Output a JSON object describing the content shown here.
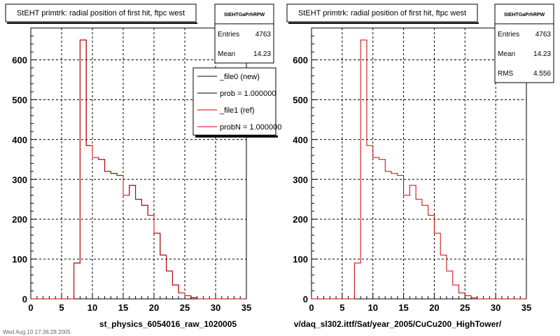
{
  "footer_text": "Wed Aug 10 17:36:28 2005",
  "chart_data": [
    {
      "type": "histogram",
      "title": "StEHT primtrk: radial position of first hit, ftpc west",
      "xlabel": "st_physics_6054016_raw_1020005",
      "xlim": [
        0,
        35
      ],
      "ylim": [
        0,
        680
      ],
      "bin_width": 1,
      "x_ticks": [
        0,
        5,
        10,
        15,
        20,
        25,
        30,
        35
      ],
      "y_ticks": [
        0,
        100,
        200,
        300,
        400,
        500,
        600
      ],
      "grid": true,
      "stats": {
        "header": "StEHTGaPrhRPW",
        "entries_label": "Entries",
        "entries": "4763",
        "mean_label": "Mean",
        "mean": "14.23"
      },
      "legend": {
        "placement": "top-right",
        "entries": [
          {
            "label": "_file0 (new)",
            "color": "#000000"
          },
          {
            "label": "prob = 1.000000",
            "color": "#000000"
          },
          {
            "label": "_file1 (ref)",
            "color": "#cc0000"
          },
          {
            "label": "probN = 1.000000",
            "color": "#cc0000"
          }
        ]
      },
      "series": [
        {
          "name": "_file0 (new)",
          "color": "#000000",
          "values": [
            0,
            0,
            0,
            0,
            0,
            0,
            0,
            90,
            650,
            385,
            355,
            350,
            320,
            315,
            310,
            260,
            285,
            250,
            235,
            210,
            165,
            110,
            70,
            35,
            15,
            8,
            3,
            0,
            0,
            0,
            0,
            0,
            0,
            0,
            0
          ]
        },
        {
          "name": "_file1 (ref)",
          "color": "#cc0000",
          "values": [
            0,
            0,
            0,
            0,
            0,
            0,
            0,
            90,
            650,
            385,
            355,
            350,
            320,
            315,
            310,
            260,
            285,
            250,
            235,
            210,
            165,
            110,
            70,
            35,
            15,
            8,
            3,
            0,
            0,
            0,
            0,
            0,
            0,
            0,
            0
          ]
        }
      ]
    },
    {
      "type": "histogram",
      "title": "StEHT primtrk: radial position of first hit, ftpc west",
      "xlabel": "v/daq_sl302.ittf/Sat/year_2005/CuCu200_HighTower/",
      "xlim": [
        0,
        35
      ],
      "ylim": [
        0,
        680
      ],
      "bin_width": 1,
      "x_ticks": [
        0,
        5,
        10,
        15,
        20,
        25,
        30,
        35
      ],
      "y_ticks": [
        0,
        100,
        200,
        300,
        400,
        500,
        600
      ],
      "grid": true,
      "stats": {
        "header": "StEHTGaPrhRPW",
        "entries_label": "Entries",
        "entries": "4763",
        "mean_label": "Mean",
        "mean": "14.23",
        "rms_label": "RMS",
        "rms": "4.556"
      },
      "series": [
        {
          "color": "#cc0000",
          "values": [
            0,
            0,
            0,
            0,
            0,
            0,
            0,
            90,
            650,
            385,
            355,
            350,
            320,
            315,
            310,
            260,
            285,
            250,
            235,
            210,
            165,
            110,
            70,
            35,
            15,
            8,
            3,
            0,
            0,
            0,
            0,
            0,
            0,
            0,
            0
          ]
        }
      ]
    }
  ]
}
